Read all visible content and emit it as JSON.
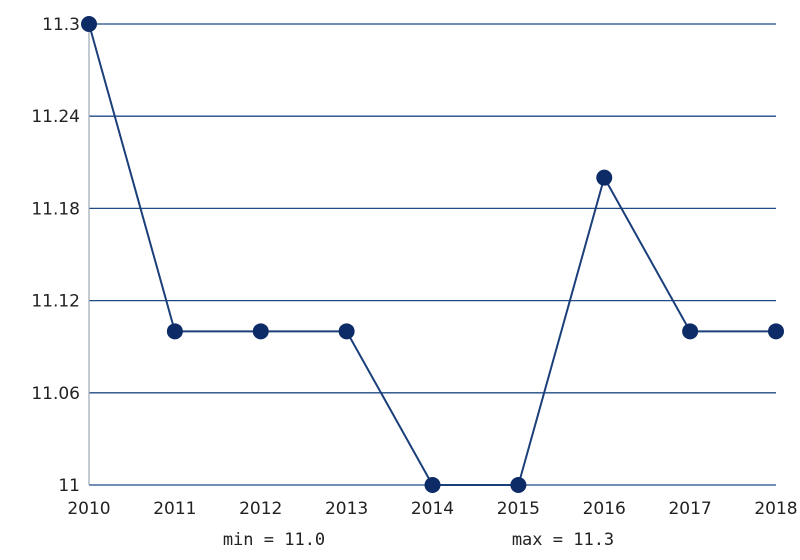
{
  "chart_data": {
    "type": "line",
    "title": "",
    "xlabel": "",
    "ylabel": "",
    "categories": [
      "2010",
      "2011",
      "2012",
      "2013",
      "2014",
      "2015",
      "2016",
      "2017",
      "2018"
    ],
    "series": [
      {
        "values": [
          11.3,
          11.1,
          11.1,
          11.1,
          11.0,
          11.0,
          11.2,
          11.1,
          11.1
        ]
      }
    ],
    "ylim": [
      11.0,
      11.3
    ],
    "y_ticks": [
      "11",
      "11.06",
      "11.12",
      "11.18",
      "11.24",
      "11.3"
    ],
    "grid": true,
    "line_color": "#1a3f7a",
    "marker_color": "#0d2b66",
    "grid_color": "#1f4a84"
  },
  "summary": {
    "min_label": "min = 11.0",
    "max_label": "max = 11.3"
  }
}
